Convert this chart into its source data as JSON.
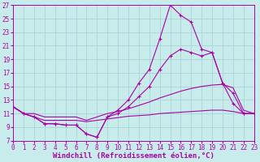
{
  "xlabel": "Windchill (Refroidissement éolien,°C)",
  "background_color": "#c8ecec",
  "grid_color": "#aad4d4",
  "line_color": "#aa00aa",
  "xlim": [
    0,
    23
  ],
  "ylim": [
    7,
    27
  ],
  "xticks": [
    0,
    1,
    2,
    3,
    4,
    5,
    6,
    7,
    8,
    9,
    10,
    11,
    12,
    13,
    14,
    15,
    16,
    17,
    18,
    19,
    20,
    21,
    22,
    23
  ],
  "yticks": [
    7,
    9,
    11,
    13,
    15,
    17,
    19,
    21,
    23,
    25,
    27
  ],
  "series": [
    {
      "x": [
        0,
        1,
        2,
        3,
        4,
        5,
        6,
        7,
        8,
        9,
        10,
        11,
        12,
        13,
        14,
        15,
        16,
        17,
        18,
        19,
        20,
        21,
        22,
        23
      ],
      "y": [
        12.0,
        11.0,
        10.5,
        9.5,
        9.5,
        9.3,
        9.3,
        8.0,
        7.5,
        10.5,
        11.5,
        13.0,
        15.5,
        17.5,
        22.0,
        27.0,
        25.5,
        24.5,
        20.5,
        20.0,
        15.5,
        14.0,
        11.0,
        11.0
      ],
      "marker": "+"
    },
    {
      "x": [
        0,
        1,
        2,
        3,
        4,
        5,
        6,
        7,
        8,
        9,
        10,
        11,
        12,
        13,
        14,
        15,
        16,
        17,
        18,
        19,
        20,
        21,
        22,
        23
      ],
      "y": [
        12.0,
        11.0,
        10.5,
        9.5,
        9.5,
        9.3,
        9.3,
        8.0,
        7.5,
        10.5,
        11.0,
        12.0,
        13.5,
        15.0,
        17.5,
        19.5,
        20.5,
        20.0,
        19.5,
        20.0,
        15.5,
        12.5,
        11.0,
        11.0
      ],
      "marker": "+"
    },
    {
      "x": [
        0,
        1,
        2,
        3,
        4,
        5,
        6,
        7,
        8,
        9,
        10,
        11,
        12,
        13,
        14,
        15,
        16,
        17,
        18,
        19,
        20,
        21,
        22,
        23
      ],
      "y": [
        12.0,
        11.0,
        11.0,
        10.5,
        10.5,
        10.5,
        10.5,
        10.0,
        10.5,
        11.0,
        11.3,
        11.7,
        12.2,
        12.7,
        13.3,
        13.8,
        14.3,
        14.7,
        15.0,
        15.2,
        15.3,
        14.8,
        11.5,
        11.0
      ],
      "marker": null
    },
    {
      "x": [
        0,
        1,
        2,
        3,
        4,
        5,
        6,
        7,
        8,
        9,
        10,
        11,
        12,
        13,
        14,
        15,
        16,
        17,
        18,
        19,
        20,
        21,
        22,
        23
      ],
      "y": [
        12.0,
        11.0,
        10.5,
        10.0,
        10.0,
        10.0,
        10.0,
        9.8,
        10.0,
        10.2,
        10.4,
        10.6,
        10.7,
        10.8,
        11.0,
        11.1,
        11.2,
        11.3,
        11.4,
        11.5,
        11.5,
        11.3,
        11.0,
        11.0
      ],
      "marker": null
    }
  ],
  "tick_fontsize": 5.5,
  "label_fontsize": 6.5
}
